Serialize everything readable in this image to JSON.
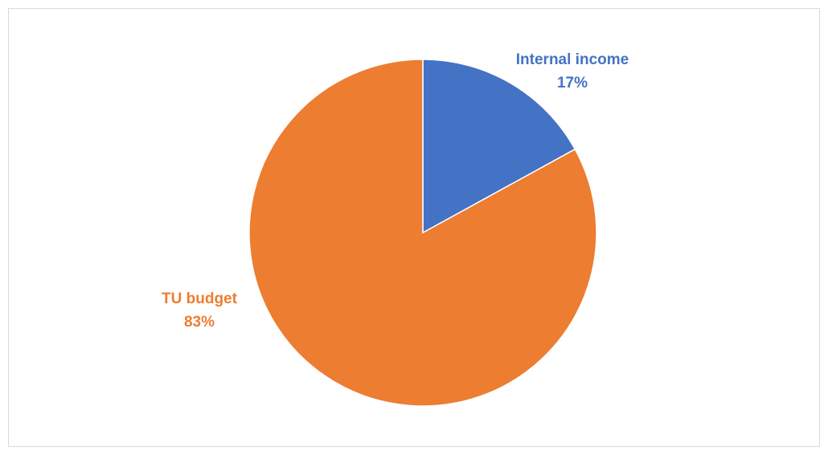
{
  "chart_data": {
    "type": "pie",
    "title": "",
    "slices": [
      {
        "name": "Internal income",
        "value": 17,
        "label": "17%",
        "color": "#4472C4"
      },
      {
        "name": "TU budget",
        "value": 83,
        "label": "83%",
        "color": "#ED7D31"
      }
    ],
    "legend": "none",
    "start_angle_deg": 0,
    "direction": "clockwise"
  }
}
